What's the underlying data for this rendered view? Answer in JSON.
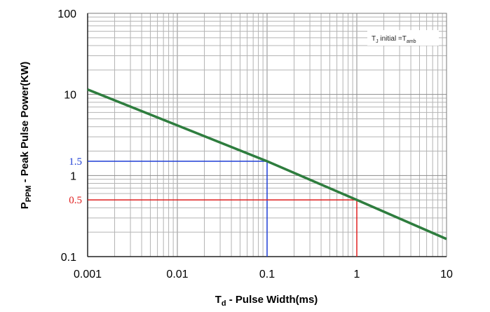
{
  "chart_data": {
    "type": "line",
    "xscale": "log",
    "yscale": "log",
    "xlim": [
      0.001,
      10
    ],
    "ylim": [
      0.1,
      100
    ],
    "grid": true,
    "x_tick_labels": [
      "0.001",
      "0.01",
      "0.1",
      "1",
      "10"
    ],
    "y_tick_labels": [
      "0.1",
      "1",
      "10",
      "100"
    ],
    "xlabel": {
      "main": "T",
      "sub": "d",
      "rest": " - Pulse Width(ms)"
    },
    "ylabel": {
      "main": "P",
      "sub": "PPM",
      "rest": " - Peak Pulse Power(KW)"
    },
    "legend_note": {
      "t": "T",
      "j": "J",
      "initial": " initial =T",
      "amb": "amb"
    },
    "series": [
      {
        "x": [
          0.001,
          0.1,
          1,
          10
        ],
        "y": [
          11.5,
          1.5,
          0.5,
          0.165
        ],
        "color": "#2e7d3e"
      }
    ],
    "annotations": [
      {
        "label": "1.5",
        "x": 0.1,
        "y": 1.5,
        "color": "#1f3fd6"
      },
      {
        "label": "0.5",
        "x": 1,
        "y": 0.5,
        "color": "#e02020"
      }
    ]
  }
}
